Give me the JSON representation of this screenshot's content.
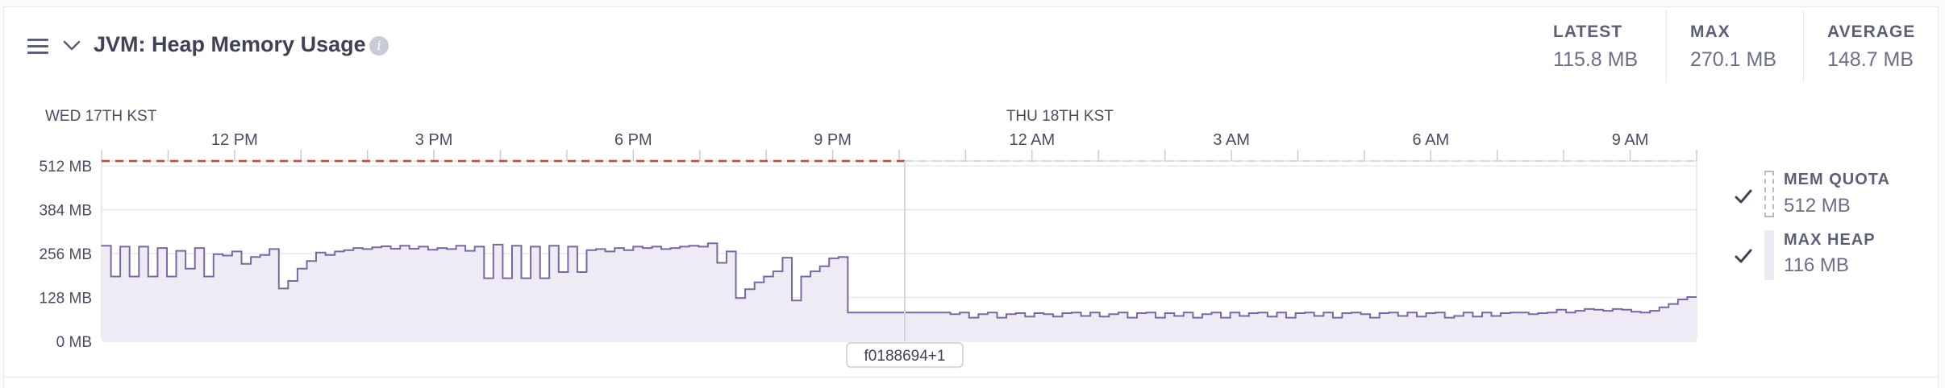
{
  "header": {
    "title": "JVM: Heap Memory Usage",
    "menu_icon": "hamburger-menu-icon",
    "collapse_icon": "chevron-down-icon",
    "info_icon": "info-icon",
    "info_glyph": "i"
  },
  "stats": [
    {
      "label": "LATEST",
      "value": "115.8 MB"
    },
    {
      "label": "MAX",
      "value": "270.1 MB"
    },
    {
      "label": "AVERAGE",
      "value": "148.7 MB"
    }
  ],
  "legend": [
    {
      "label": "MEM QUOTA",
      "value": "512 MB",
      "checked": true,
      "icon": "checkmark-icon"
    },
    {
      "label": "MAX HEAP",
      "value": "116 MB",
      "checked": true,
      "icon": "checkmark-icon"
    }
  ],
  "marker": {
    "label": "f0188694+1"
  },
  "colors": {
    "quota": "#d0423c",
    "heap_line": "#7a68a6",
    "heap_fill": "#eeebf4",
    "grid": "#e8e8f0",
    "axis_text": "#4a4d62"
  },
  "chart_data": {
    "type": "area",
    "title": "JVM: Heap Memory Usage",
    "day_labels": [
      "WED 17TH KST",
      "THU 18TH KST"
    ],
    "x_tick_labels": [
      "12 PM",
      "3 PM",
      "6 PM",
      "9 PM",
      "12 AM",
      "3 AM",
      "6 AM",
      "9 AM"
    ],
    "x_range": [
      "Wed 10:00",
      "Thu 10:00"
    ],
    "y_tick_labels": [
      "512 MB",
      "384 MB",
      "256 MB",
      "128 MB",
      "0 MB"
    ],
    "y_ticks": [
      512,
      384,
      256,
      128,
      0
    ],
    "ylim": [
      0,
      512
    ],
    "grid": true,
    "legend_position": "right",
    "series": [
      {
        "name": "MEM QUOTA",
        "style": "dashed",
        "values": [
          512
        ]
      },
      {
        "name": "MAX HEAP",
        "style": "step-area",
        "values": [
          265,
          175,
          262,
          175,
          262,
          175,
          258,
          175,
          250,
          198,
          258,
          175,
          240,
          236,
          248,
          212,
          232,
          238,
          255,
          140,
          162,
          198,
          220,
          245,
          238,
          248,
          252,
          258,
          255,
          260,
          263,
          256,
          265,
          256,
          262,
          253,
          258,
          255,
          265,
          250,
          262,
          170,
          268,
          170,
          265,
          170,
          262,
          170,
          265,
          188,
          262,
          188,
          252,
          255,
          248,
          258,
          252,
          262,
          258,
          262,
          255,
          258,
          262,
          265,
          262,
          272,
          215,
          248,
          112,
          138,
          158,
          175,
          190,
          230,
          105,
          175,
          190,
          205,
          228,
          232,
          70,
          70,
          70,
          70,
          70,
          70,
          70,
          70,
          70,
          70,
          70,
          65,
          70,
          55,
          65,
          70,
          55,
          65,
          68,
          58,
          68,
          65,
          58,
          68,
          70,
          60,
          70,
          58,
          65,
          70,
          55,
          68,
          70,
          55,
          68,
          60,
          70,
          55,
          65,
          70,
          55,
          70,
          60,
          68,
          70,
          58,
          70,
          55,
          68,
          70,
          60,
          70,
          55,
          68,
          70,
          65,
          55,
          68,
          70,
          60,
          70,
          58,
          68,
          70,
          55,
          60,
          70,
          58,
          70,
          60,
          68,
          70,
          70,
          65,
          68,
          70,
          78,
          70,
          75,
          80,
          78,
          75,
          80,
          78,
          72,
          70,
          75,
          85,
          95,
          108,
          115
        ]
      }
    ]
  }
}
